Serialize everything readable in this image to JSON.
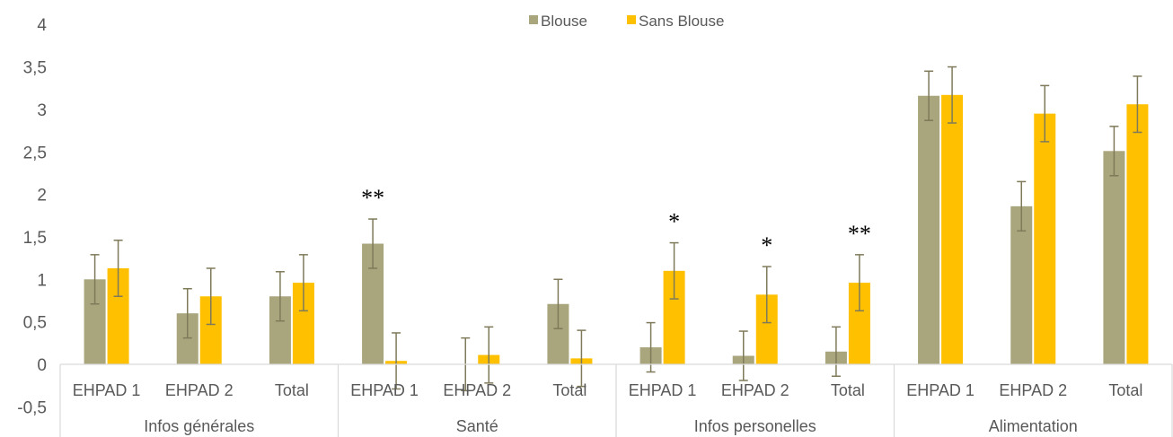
{
  "chart_data": {
    "type": "bar",
    "ylim": [
      -0.5,
      4
    ],
    "yticks": [
      "-0,5",
      "0",
      "0,5",
      "1",
      "1,5",
      "2",
      "2,5",
      "3",
      "3,5",
      "4"
    ],
    "ytick_values": [
      -0.5,
      0,
      0.5,
      1,
      1.5,
      2,
      2.5,
      3,
      3.5,
      4
    ],
    "grid": false,
    "legend_position": "top-center",
    "groups": [
      {
        "name": "Infos générales",
        "categories": [
          "EHPAD 1",
          "EHPAD 2",
          "Total"
        ]
      },
      {
        "name": "Santé",
        "categories": [
          "EHPAD 1",
          "EHPAD 2",
          "Total"
        ]
      },
      {
        "name": "Infos personelles",
        "categories": [
          "EHPAD 1",
          "EHPAD 2",
          "Total"
        ]
      },
      {
        "name": "Alimentation",
        "categories": [
          "EHPAD 1",
          "EHPAD 2",
          "Total"
        ]
      }
    ],
    "series": [
      {
        "name": "Blouse",
        "color": "#a9a57c",
        "values": [
          1.0,
          0.6,
          0.8,
          1.42,
          0.0,
          0.71,
          0.2,
          0.1,
          0.15,
          3.16,
          1.86,
          2.51
        ],
        "errors": [
          0.29,
          0.29,
          0.29,
          0.29,
          0.31,
          0.29,
          0.29,
          0.29,
          0.29,
          0.29,
          0.29,
          0.29
        ]
      },
      {
        "name": "Sans Blouse",
        "color": "#ffc000",
        "values": [
          1.13,
          0.8,
          0.96,
          0.04,
          0.11,
          0.07,
          1.1,
          0.82,
          0.96,
          3.17,
          2.95,
          3.06
        ],
        "errors": [
          0.33,
          0.33,
          0.33,
          0.33,
          0.33,
          0.33,
          0.33,
          0.33,
          0.33,
          0.33,
          0.33,
          0.33
        ]
      }
    ],
    "annotations": [
      {
        "label": "**",
        "category_index": 3,
        "series": "Blouse"
      },
      {
        "label": "*",
        "category_index": 6,
        "series": "Sans Blouse"
      },
      {
        "label": "*",
        "category_index": 7,
        "series": "Sans Blouse"
      },
      {
        "label": "**",
        "category_index": 8,
        "series": "Sans Blouse"
      }
    ]
  }
}
